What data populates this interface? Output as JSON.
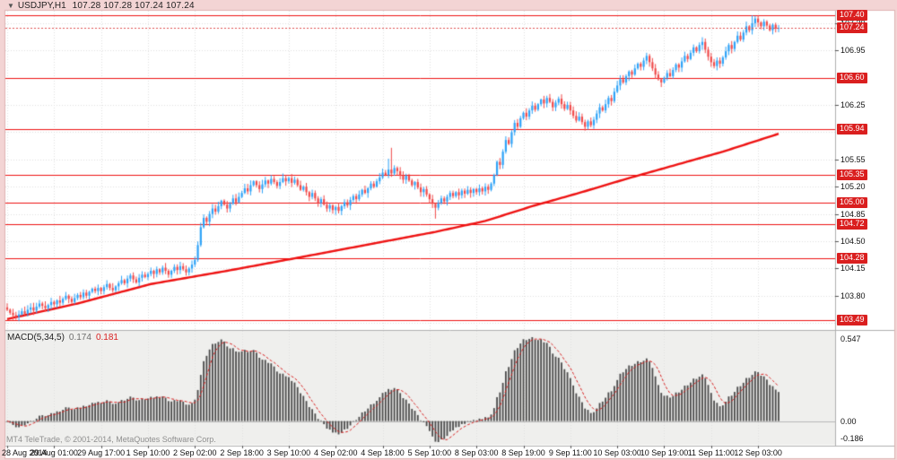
{
  "chart_title": {
    "dropdown_icon": "▼",
    "symbol_period": "USDJPY,H1",
    "ohlc_values": "107.28 107.28 107.24 107.24"
  },
  "price_axis": {
    "ticks": [
      107.3,
      106.95,
      106.25,
      105.55,
      105.2,
      104.85,
      104.5,
      104.15,
      103.8
    ],
    "level_badges": [
      107.4,
      106.6,
      105.94,
      105.35,
      105.0,
      104.72,
      104.28,
      103.49
    ],
    "current_price": 107.24
  },
  "time_axis": {
    "labels": [
      "28 Aug 2014",
      "29 Aug 01:00",
      "29 Aug 17:00",
      "1 Sep 10:00",
      "2 Sep 02:00",
      "2 Sep 18:00",
      "3 Sep 10:00",
      "4 Sep 02:00",
      "4 Sep 18:00",
      "5 Sep 10:00",
      "8 Sep 03:00",
      "8 Sep 19:00",
      "9 Sep 11:00",
      "10 Sep 03:00",
      "10 Sep 19:00",
      "11 Sep 11:00",
      "12 Sep 03:00"
    ],
    "bars_per_label": 16
  },
  "macd_panel": {
    "name_label": "MACD(5,34,5)",
    "macd_value": "0.174",
    "signal_value": "0.181",
    "scale_max": "0.547",
    "scale_zero": "0.00",
    "scale_min": "-0.186"
  },
  "footer": {
    "copyright": "MT4 TeleTrade, © 2001-2014, MetaQuotes Software Corp."
  },
  "colors": {
    "frame": "#f3d4d4",
    "frame_border": "#dfb3b3",
    "chart_bg": "#ffffff",
    "panel_bg": "#efefed",
    "grid": "#e0e0e0",
    "axis_border": "#b0b0b0",
    "tick_mark": "#555555",
    "up_candle": "#2fa3f7",
    "down_candle": "#f04a4a",
    "level_line": "#ee1212",
    "ma_line": "#ee1212",
    "bid_line": "#e05050",
    "badge_bg": "#da1f1f",
    "histogram": "#4a4a4a",
    "signal_line": "#d92121",
    "zero_line": "#b8b8b8"
  },
  "chart_data": {
    "type": "candlestick",
    "symbol": "USDJPY",
    "timeframe": "H1",
    "title": "USDJPY,H1 107.28 107.28 107.24 107.24",
    "ylim": [
      103.36,
      107.46
    ],
    "grid_step": 0.35,
    "grid_prices": [
      103.45,
      103.8,
      104.15,
      104.5,
      104.85,
      105.2,
      105.55,
      105.9,
      106.25,
      106.6,
      106.95,
      107.3
    ],
    "horizontal_levels": [
      107.4,
      106.6,
      105.94,
      105.35,
      105.0,
      104.72,
      104.28,
      103.49
    ],
    "bid_price": 107.24,
    "first_open": 103.65,
    "closes": [
      103.62,
      103.58,
      103.55,
      103.53,
      103.56,
      103.6,
      103.57,
      103.62,
      103.65,
      103.61,
      103.66,
      103.7,
      103.67,
      103.64,
      103.68,
      103.72,
      103.69,
      103.74,
      103.71,
      103.76,
      103.8,
      103.76,
      103.72,
      103.77,
      103.81,
      103.78,
      103.84,
      103.8,
      103.85,
      103.89,
      103.86,
      103.9,
      103.86,
      103.91,
      103.95,
      103.9,
      103.87,
      103.92,
      103.96,
      104.0,
      103.96,
      104.02,
      104.06,
      104.01,
      103.97,
      104.03,
      104.07,
      104.04,
      104.08,
      104.12,
      104.08,
      104.14,
      104.1,
      104.16,
      104.12,
      104.07,
      104.12,
      104.17,
      104.13,
      104.18,
      104.14,
      104.1,
      104.15,
      104.2,
      104.26,
      104.45,
      104.68,
      104.8,
      104.75,
      104.85,
      104.92,
      104.88,
      104.95,
      105.02,
      104.97,
      104.92,
      104.98,
      105.05,
      105.0,
      105.07,
      105.12,
      105.18,
      105.14,
      105.22,
      105.27,
      105.22,
      105.17,
      105.23,
      105.28,
      105.24,
      105.3,
      105.26,
      105.21,
      105.26,
      105.31,
      105.27,
      105.31,
      105.25,
      105.29,
      105.22,
      105.16,
      105.2,
      105.13,
      105.07,
      105.12,
      105.05,
      104.99,
      105.04,
      104.97,
      104.92,
      104.96,
      104.9,
      104.94,
      104.89,
      104.95,
      105.0,
      104.96,
      105.03,
      105.08,
      105.04,
      105.1,
      105.16,
      105.12,
      105.18,
      105.24,
      105.2,
      105.27,
      105.32,
      105.38,
      105.35,
      105.42,
      105.37,
      105.44,
      105.4,
      105.34,
      105.29,
      105.34,
      105.28,
      105.22,
      105.26,
      105.19,
      105.13,
      105.17,
      105.1,
      105.04,
      104.98,
      104.93,
      104.99,
      105.05,
      105.01,
      105.07,
      105.12,
      105.08,
      105.13,
      105.09,
      105.15,
      105.11,
      105.16,
      105.12,
      105.17,
      105.13,
      105.18,
      105.14,
      105.2,
      105.16,
      105.24,
      105.35,
      105.52,
      105.48,
      105.65,
      105.8,
      105.75,
      105.9,
      106.02,
      105.97,
      106.08,
      106.15,
      106.1,
      106.18,
      106.24,
      106.19,
      106.26,
      106.32,
      106.27,
      106.34,
      106.29,
      106.22,
      106.28,
      106.33,
      106.26,
      106.2,
      106.25,
      106.18,
      106.11,
      106.05,
      106.1,
      106.03,
      105.97,
      106.04,
      105.99,
      106.06,
      106.14,
      106.22,
      106.18,
      106.26,
      106.34,
      106.3,
      106.42,
      106.5,
      106.58,
      106.54,
      106.62,
      106.68,
      106.64,
      106.72,
      106.78,
      106.74,
      106.82,
      106.88,
      106.8,
      106.72,
      106.64,
      106.58,
      106.54,
      106.6,
      106.66,
      106.62,
      106.7,
      106.77,
      106.73,
      106.81,
      106.88,
      106.84,
      106.92,
      106.99,
      106.94,
      107.02,
      107.06,
      106.96,
      106.87,
      106.8,
      106.75,
      106.82,
      106.78,
      106.86,
      106.94,
      107.02,
      106.97,
      107.06,
      107.14,
      107.09,
      107.18,
      107.26,
      107.21,
      107.3,
      107.36,
      107.31,
      107.26,
      107.32,
      107.27,
      107.21,
      107.28,
      107.23,
      107.24
    ],
    "wick": {
      "base": 0.012,
      "rand_scale": 0.05
    },
    "spikes": [
      {
        "i": 3,
        "low": 103.49
      },
      {
        "i": 130,
        "high": 105.56
      },
      {
        "i": 131,
        "high": 105.7
      },
      {
        "i": 146,
        "low": 104.79
      },
      {
        "i": 197,
        "low": 105.92
      },
      {
        "i": 237,
        "high": 107.12
      },
      {
        "i": 254,
        "high": 107.4
      }
    ],
    "ma_line_points": [
      [
        0,
        103.5
      ],
      [
        24,
        103.7
      ],
      [
        49,
        103.95
      ],
      [
        75,
        104.12
      ],
      [
        98,
        104.28
      ],
      [
        122,
        104.45
      ],
      [
        146,
        104.62
      ],
      [
        163,
        104.76
      ],
      [
        179,
        104.95
      ],
      [
        195,
        105.12
      ],
      [
        211,
        105.3
      ],
      [
        227,
        105.47
      ],
      [
        244,
        105.65
      ],
      [
        263,
        105.88
      ]
    ],
    "macd": {
      "fast": 5,
      "slow": 34,
      "signal": 5,
      "current_macd": 0.174,
      "current_signal": 0.181,
      "scale_max": 0.547,
      "scale_min": -0.186
    }
  }
}
